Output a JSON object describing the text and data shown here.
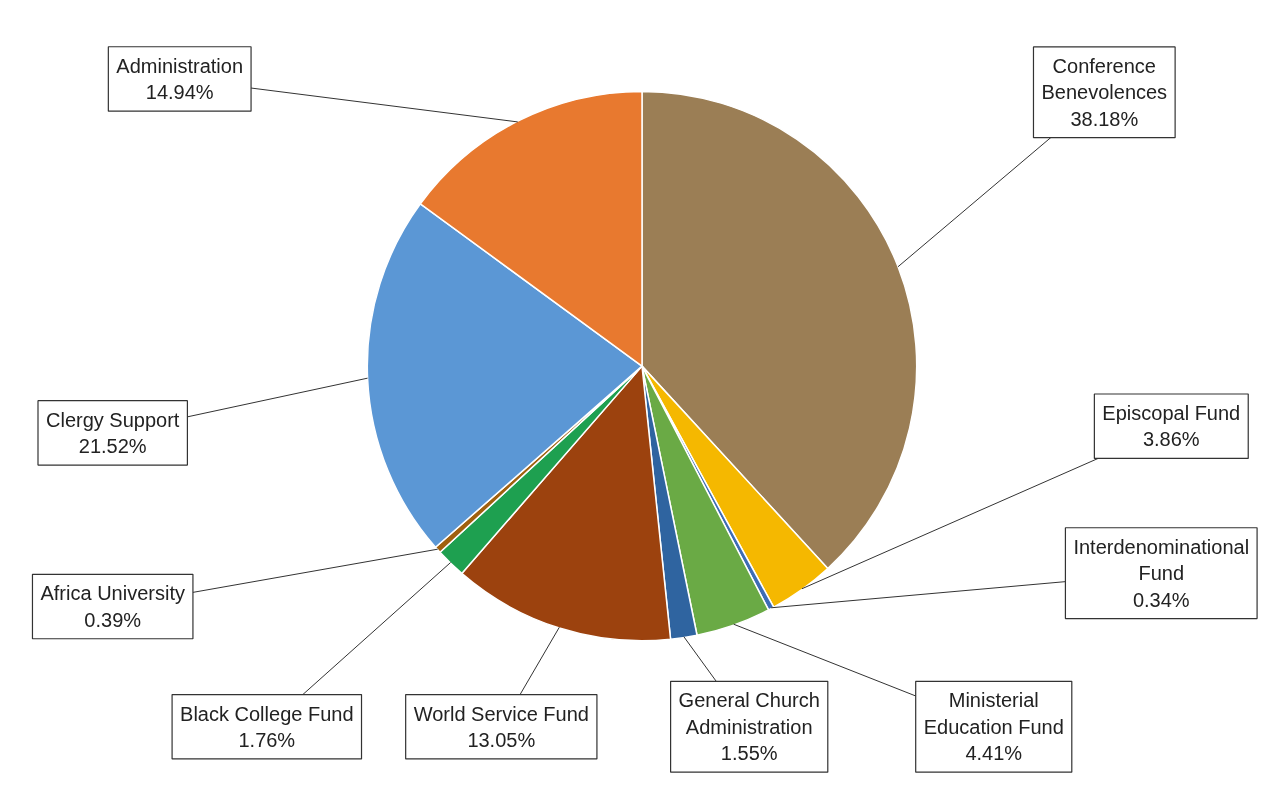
{
  "chart_data": {
    "type": "pie",
    "categories": [
      "Conference Benevolences",
      "Episcopal Fund",
      "Interdenominational Fund",
      "Ministerial Education Fund",
      "General Church Administration",
      "World Service Fund",
      "Black College Fund",
      "Africa University",
      "Clergy Support",
      "Administration"
    ],
    "values": [
      38.18,
      3.86,
      0.34,
      4.41,
      1.55,
      13.05,
      1.76,
      0.39,
      21.52,
      14.94
    ],
    "value_labels": [
      "38.18%",
      "3.86%",
      "0.34%",
      "4.41%",
      "1.55%",
      "13.05%",
      "1.76%",
      "0.39%",
      "21.52%",
      "14.94%"
    ],
    "colors": [
      "#9b7e55",
      "#f5b800",
      "#3d6cb5",
      "#6aaa45",
      "#2f64a0",
      "#9c420e",
      "#1ea050",
      "#a0600e",
      "#5b97d5",
      "#e8792f"
    ]
  }
}
